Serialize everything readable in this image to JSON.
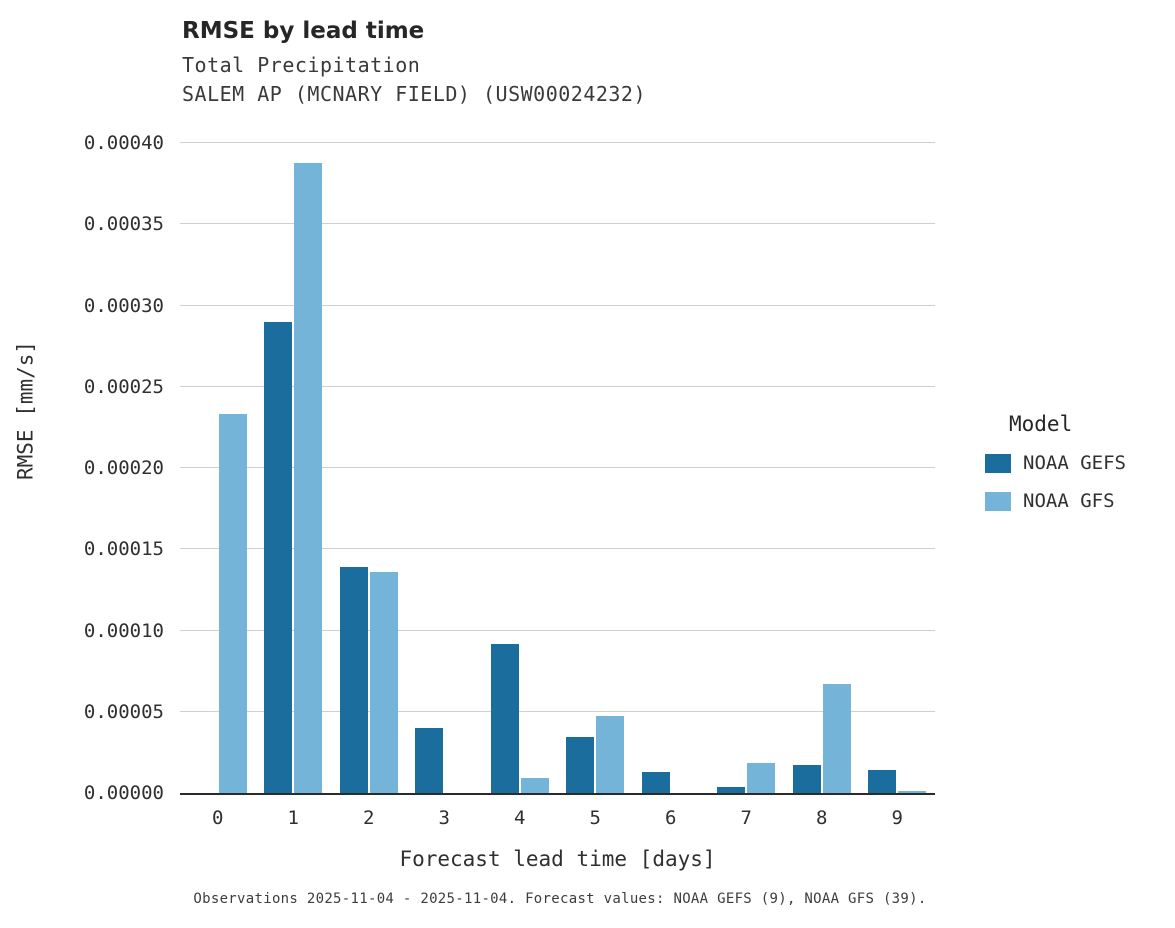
{
  "chart_data": {
    "type": "bar",
    "title": "RMSE by lead time",
    "subtitle_line1": "Total Precipitation",
    "subtitle_line2": "SALEM AP (MCNARY FIELD) (USW00024232)",
    "xlabel": "Forecast lead time [days]",
    "ylabel": "RMSE [mm/s]",
    "categories": [
      "0",
      "1",
      "2",
      "3",
      "4",
      "5",
      "6",
      "7",
      "8",
      "9"
    ],
    "series": [
      {
        "name": "NOAA GEFS",
        "color": "#1b6d9e",
        "values": [
          0,
          0.00029,
          0.000139,
          4e-05,
          9.2e-05,
          3.45e-05,
          1.3e-05,
          4e-06,
          1.72e-05,
          1.42e-05
        ]
      },
      {
        "name": "NOAA GFS",
        "color": "#74b4d9",
        "values": [
          0.000233,
          0.000388,
          0.000136,
          0,
          9.5e-06,
          4.74e-05,
          0,
          1.85e-05,
          6.7e-05,
          1.5e-06
        ]
      }
    ],
    "ylim": [
      0,
      0.0004
    ],
    "ytick_step": 5e-05,
    "ytick_decimals": 5,
    "grid": "horizontal",
    "legend": {
      "title": "Model",
      "position": "right",
      "entries": [
        "NOAA GEFS",
        "NOAA GFS"
      ]
    },
    "caption": "Observations 2025-11-04 - 2025-11-04. Forecast values: NOAA GEFS (9), NOAA GFS (39)."
  }
}
